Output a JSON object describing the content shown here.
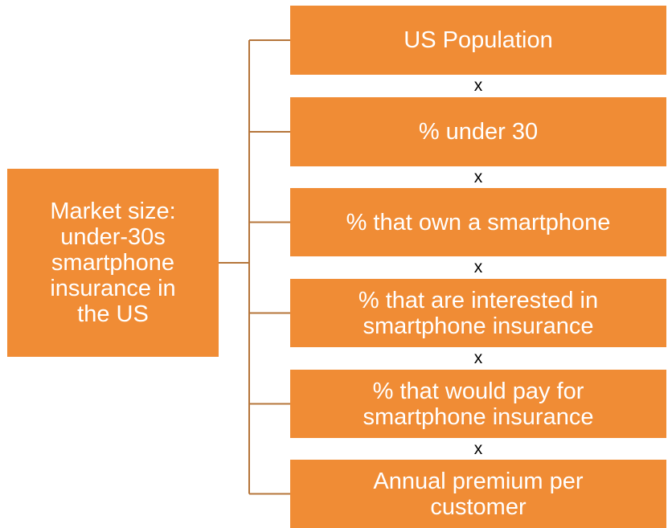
{
  "root": {
    "lines": [
      "Market size:",
      "under-30s",
      "smartphone",
      "insurance in",
      "the US"
    ]
  },
  "nodes": [
    {
      "lines": [
        "US Population"
      ]
    },
    {
      "lines": [
        "% under 30"
      ]
    },
    {
      "lines": [
        "% that own a smartphone"
      ]
    },
    {
      "lines": [
        "% that are interested in",
        "smartphone insurance"
      ]
    },
    {
      "lines": [
        "% that would pay for",
        "smartphone insurance"
      ]
    },
    {
      "lines": [
        "Annual premium per",
        "customer"
      ]
    }
  ],
  "operators": [
    "x",
    "x",
    "x",
    "x",
    "x"
  ]
}
